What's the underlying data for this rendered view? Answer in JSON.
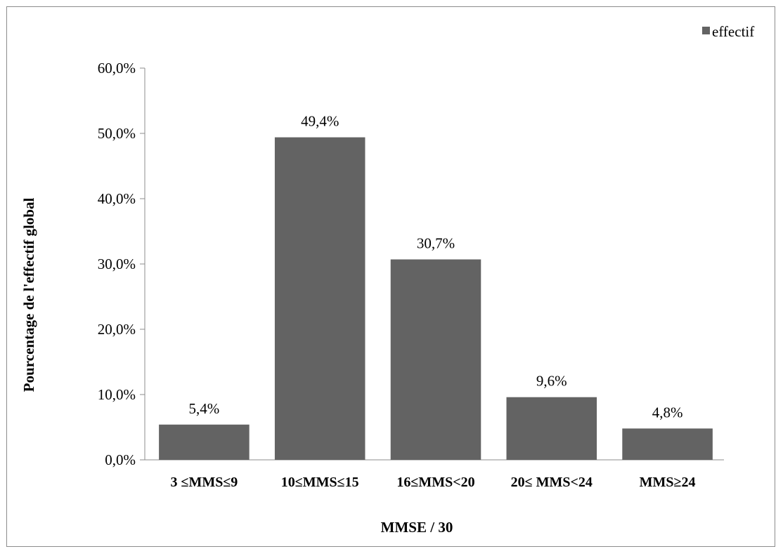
{
  "chart_data": {
    "type": "bar",
    "categories": [
      "3 ≤MMS≤9",
      "10≤MMS≤15",
      "16≤MMS<20",
      "20≤ MMS<24",
      "MMS≥24"
    ],
    "series": [
      {
        "name": "effectif",
        "values": [
          5.4,
          49.4,
          30.7,
          9.6,
          4.8
        ],
        "color": "#636363"
      }
    ],
    "data_labels": [
      "5,4%",
      "49,4%",
      "30,7%",
      "9,6%",
      "4,8%"
    ],
    "yticks": [
      0,
      10,
      20,
      30,
      40,
      50,
      60
    ],
    "ytick_labels": [
      "0,0%",
      "10,0%",
      "20,0%",
      "30,0%",
      "40,0%",
      "50,0%",
      "60,0%"
    ],
    "ylim": [
      0,
      60
    ],
    "xlabel": "MMSE / 30",
    "ylabel": "Pourcentage de l'effectif global",
    "legend": {
      "position": "top-right"
    },
    "grid": false
  }
}
